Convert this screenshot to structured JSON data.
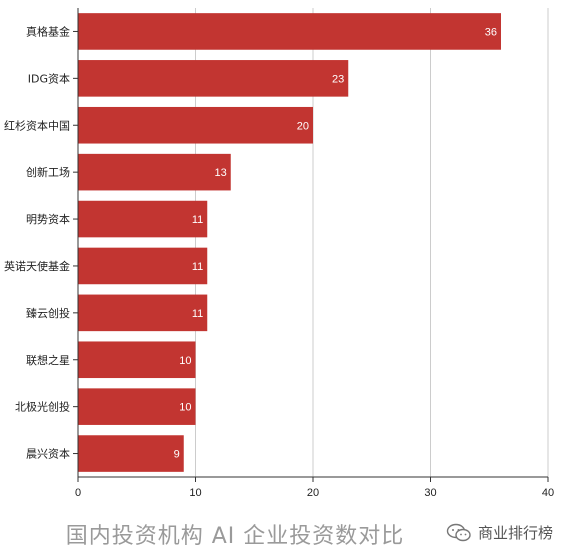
{
  "caption": "国内投资机构 AI 企业投资数对比",
  "watermark": "商业排行榜",
  "colors": {
    "bar": "#c23531",
    "grid": "#cccccc",
    "axis": "#333333",
    "label": "#222222",
    "value_text": "#ffffff"
  },
  "chart_data": {
    "type": "bar",
    "orientation": "horizontal",
    "categories": [
      "真格基金",
      "IDG资本",
      "红杉资本中国",
      "创新工场",
      "明势资本",
      "英诺天使基金",
      "臻云创投",
      "联想之星",
      "北极光创投",
      "晨兴资本"
    ],
    "values": [
      36,
      23,
      20,
      13,
      11,
      11,
      11,
      10,
      10,
      9
    ],
    "xlim": [
      0,
      40
    ],
    "xticks": [
      0,
      10,
      20,
      30,
      40
    ],
    "grid": true,
    "data_labels": true
  }
}
